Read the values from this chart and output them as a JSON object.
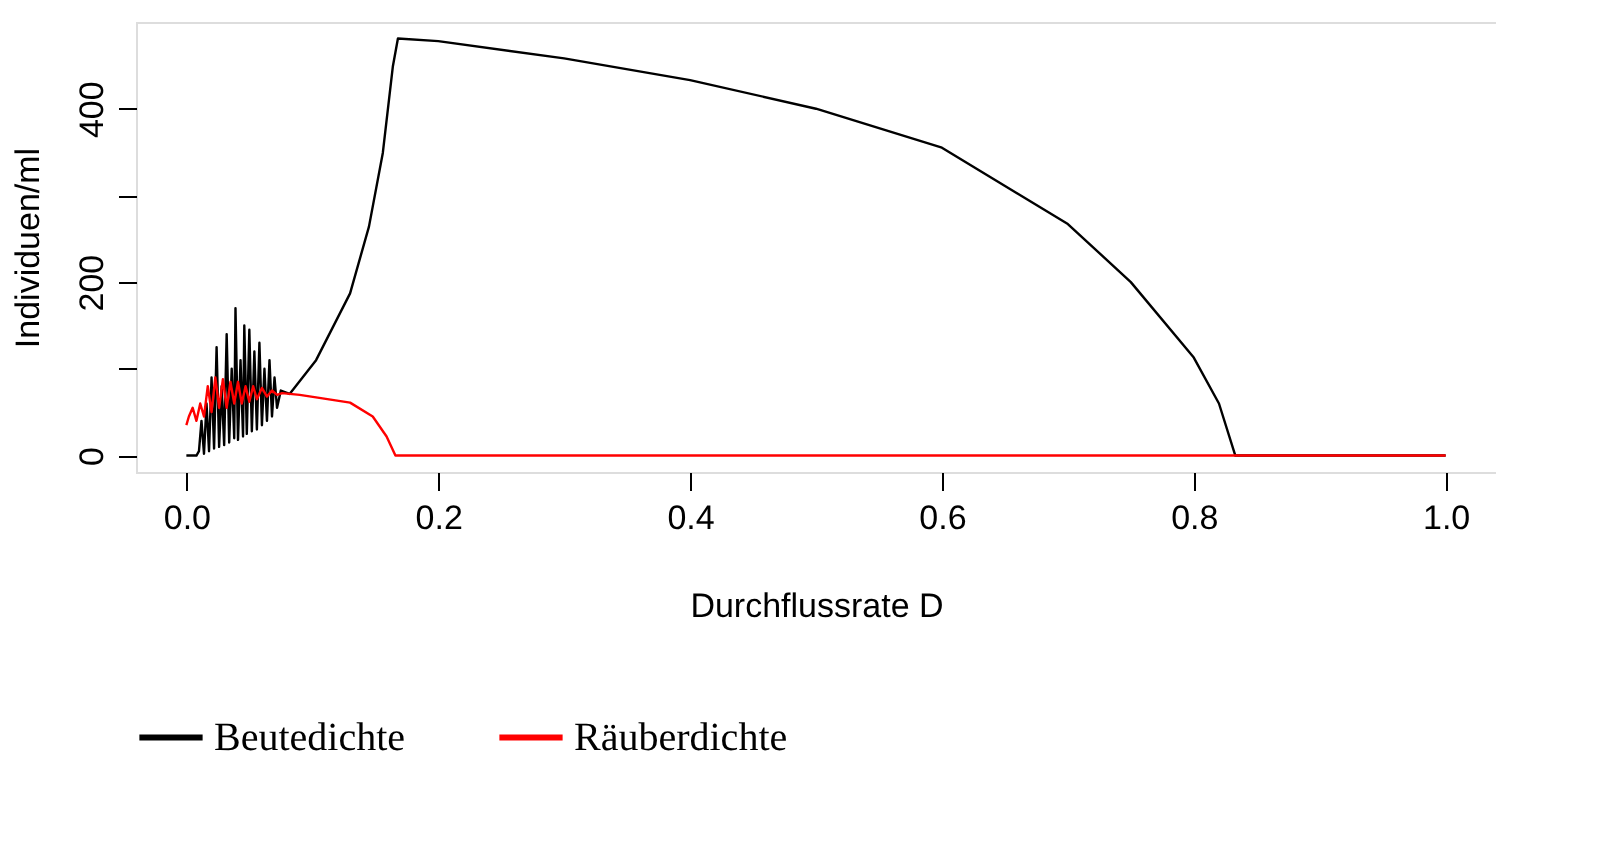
{
  "chart_data": {
    "type": "line",
    "xlabel": "Durchflussrate D",
    "ylabel": "Individuen/ml",
    "xlim": [
      -0.04,
      1.04
    ],
    "ylim": [
      -19,
      500
    ],
    "xticks": [
      {
        "value": 0,
        "label": "0.0"
      },
      0.2,
      0.4,
      0.6,
      0.8,
      {
        "value": 1,
        "label": "1.0"
      }
    ],
    "yticks": [
      0,
      {
        "value": 100,
        "label": null
      },
      200,
      {
        "value": 300,
        "label": null
      },
      400
    ],
    "grid": false,
    "legend": "bottom",
    "marker": "none",
    "line_style": "solid",
    "series": [
      {
        "name": "Beutedichte",
        "color": "#000000",
        "x": [
          0,
          0.008,
          0.01,
          0.012,
          0.014,
          0.016,
          0.018,
          0.02,
          0.022,
          0.024,
          0.026,
          0.028,
          0.03,
          0.032,
          0.034,
          0.036,
          0.038,
          0.039,
          0.041,
          0.043,
          0.045,
          0.046,
          0.048,
          0.05,
          0.052,
          0.054,
          0.056,
          0.058,
          0.06,
          0.062,
          0.064,
          0.066,
          0.068,
          0.07,
          0.072,
          0.075,
          0.082,
          0.103,
          0.13,
          0.145,
          0.156,
          0.164,
          0.168,
          0.2,
          0.3,
          0.4,
          0.5,
          0.6,
          0.7,
          0.75,
          0.8,
          0.82,
          0.833,
          0.9,
          1.0
        ],
        "values": [
          0,
          0,
          5,
          40,
          2,
          60,
          5,
          90,
          8,
          125,
          10,
          80,
          12,
          140,
          15,
          100,
          20,
          170,
          18,
          110,
          22,
          150,
          25,
          145,
          28,
          120,
          30,
          130,
          35,
          100,
          40,
          110,
          45,
          90,
          55,
          75,
          71,
          110,
          187,
          264,
          349,
          449,
          481,
          478,
          458,
          433,
          400,
          355,
          267,
          200,
          113,
          60,
          0,
          0,
          0
        ]
      },
      {
        "name": "Räuberdichte",
        "color": "#ff0000",
        "x": [
          0,
          0.002,
          0.005,
          0.008,
          0.011,
          0.014,
          0.017,
          0.02,
          0.023,
          0.026,
          0.029,
          0.032,
          0.035,
          0.038,
          0.041,
          0.044,
          0.047,
          0.05,
          0.053,
          0.056,
          0.06,
          0.064,
          0.068,
          0.072,
          0.076,
          0.09,
          0.103,
          0.13,
          0.148,
          0.159,
          0.166,
          0.2,
          0.5,
          1.0
        ],
        "values": [
          35,
          45,
          55,
          40,
          60,
          45,
          80,
          50,
          90,
          55,
          88,
          55,
          85,
          60,
          85,
          60,
          80,
          62,
          80,
          65,
          78,
          68,
          75,
          70,
          72,
          70,
          67,
          61,
          45,
          22,
          0,
          0,
          0,
          0
        ]
      }
    ]
  }
}
